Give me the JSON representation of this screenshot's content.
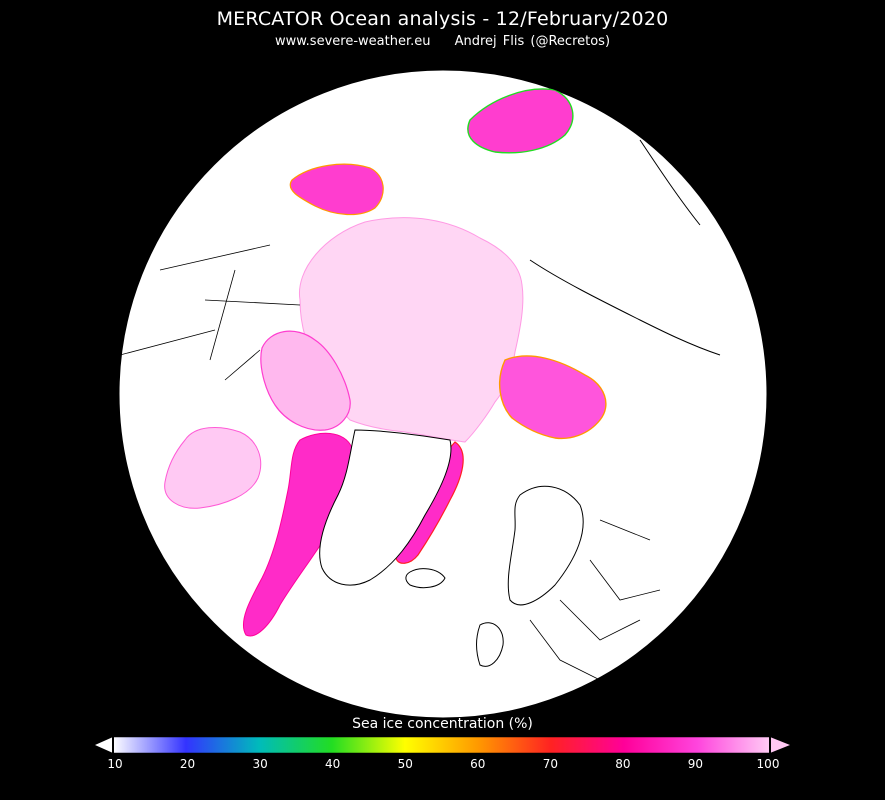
{
  "header": {
    "title": "MERCATOR Ocean analysis - 12/February/2020",
    "website": "www.severe-weather.eu",
    "author": "Andrej Flis (@Recretos)"
  },
  "colorbar": {
    "title": "Sea ice concentration (%)",
    "unit": "%",
    "min": 10,
    "max": 100,
    "ticks": [
      "10",
      "20",
      "30",
      "40",
      "50",
      "60",
      "70",
      "80",
      "90",
      "100"
    ],
    "stops": [
      {
        "value": 10,
        "color": "#ffffff"
      },
      {
        "value": 20,
        "color": "#3333ff"
      },
      {
        "value": 30,
        "color": "#00bbbb"
      },
      {
        "value": 40,
        "color": "#22dd22"
      },
      {
        "value": 50,
        "color": "#ffff00"
      },
      {
        "value": 60,
        "color": "#ff9900"
      },
      {
        "value": 70,
        "color": "#ff2222"
      },
      {
        "value": 80,
        "color": "#ff0099"
      },
      {
        "value": 90,
        "color": "#ff44dd"
      },
      {
        "value": 100,
        "color": "#ffccf5"
      }
    ],
    "extend_colors": {
      "low": "#ffffff",
      "high": "#ffc8f2"
    }
  },
  "map": {
    "projection": "north polar stereographic",
    "background_color": "#000000",
    "land_color": "#ffffff",
    "coastline_color": "#000000",
    "pack_ice_color": "#ffd2f3",
    "dense_ice_color": "#ff2bc8"
  }
}
